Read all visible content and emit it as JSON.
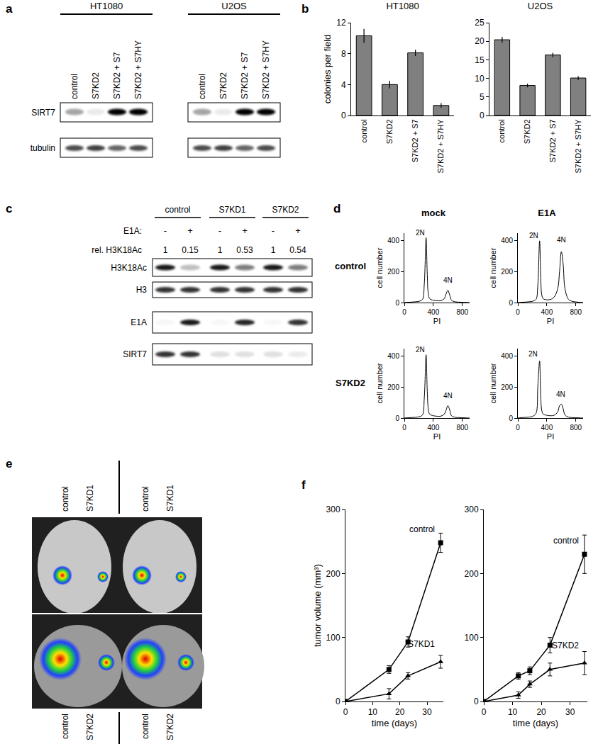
{
  "panel_labels": [
    "a",
    "b",
    "c",
    "d",
    "e",
    "f"
  ],
  "blot_a": {
    "groups": [
      "HT1080",
      "U2OS"
    ],
    "lanes": [
      "control",
      "S7KD2",
      "S7KD2 + S7",
      "S7KD2 + S7HY"
    ],
    "rows": [
      "SIRT7",
      "tubulin"
    ]
  },
  "blot_c": {
    "groups": [
      "control",
      "S7KD1",
      "S7KD2"
    ],
    "treatment_label": "E1A:",
    "treatment": [
      "-",
      "+",
      "-",
      "+",
      "-",
      "+"
    ],
    "quant_label": "rel. H3K18Ac",
    "quant": [
      1,
      0.15,
      1,
      0.53,
      1,
      0.54
    ],
    "rows": [
      "H3K18Ac",
      "H3",
      "E1A",
      "SIRT7"
    ]
  },
  "flow_d": {
    "columns": [
      "mock",
      "E1A"
    ],
    "rows": [
      "control",
      "S7KD2"
    ]
  },
  "mice_e": {
    "top_labels": [
      "control",
      "S7KD1",
      "control",
      "S7KD1"
    ],
    "bottom_labels": [
      "control",
      "S7KD2",
      "control",
      "S7KD2"
    ]
  },
  "chart_data": [
    {
      "type": "bar",
      "title": "HT1080",
      "categories": [
        "control",
        "S7KD2",
        "S7KD2 + S7",
        "S7KD2 + S7HY"
      ],
      "values": [
        10.3,
        4.0,
        8.1,
        1.3
      ],
      "errors": [
        0.9,
        0.5,
        0.4,
        0.3
      ],
      "ylim": [
        0,
        12
      ],
      "yticks": [
        0,
        4,
        8,
        12
      ],
      "ylabel": "colonies per field",
      "color": "#808080",
      "grid": false
    },
    {
      "type": "bar",
      "title": "U2OS",
      "categories": [
        "control",
        "S7KD2",
        "S7KD2 + S7",
        "S7KD2 + S7HY"
      ],
      "values": [
        20.4,
        8.1,
        16.3,
        10.1
      ],
      "errors": [
        0.8,
        0.5,
        0.6,
        0.5
      ],
      "ylim": [
        0,
        25
      ],
      "yticks": [
        0,
        5,
        10,
        15,
        20,
        25
      ],
      "color": "#808080",
      "grid": false
    },
    {
      "type": "line",
      "x": [
        0,
        50,
        100,
        150,
        200,
        250,
        275,
        300,
        315,
        330,
        350,
        400,
        450,
        500,
        550,
        575,
        600,
        625,
        650,
        700,
        750,
        800,
        850,
        900
      ],
      "values": [
        0,
        2,
        3,
        5,
        8,
        20,
        120,
        420,
        200,
        60,
        25,
        15,
        12,
        12,
        25,
        55,
        80,
        50,
        15,
        5,
        3,
        2,
        1,
        0
      ],
      "xlim": [
        0,
        900
      ],
      "xticks": [
        0,
        400,
        800
      ],
      "ylim": [
        0,
        450
      ],
      "yticks": [
        0,
        200,
        400
      ],
      "xlabel": "PI",
      "ylabel": "cell number",
      "color": "#000000",
      "grid": false,
      "annotations": [
        {
          "text": "2N",
          "x": 220,
          "y": 420
        },
        {
          "text": "4N",
          "x": 600,
          "y": 110
        }
      ]
    },
    {
      "type": "line",
      "x": [
        0,
        50,
        100,
        150,
        200,
        250,
        275,
        300,
        315,
        330,
        350,
        400,
        450,
        500,
        550,
        575,
        600,
        625,
        650,
        700,
        750,
        800,
        850,
        900
      ],
      "values": [
        0,
        2,
        3,
        5,
        8,
        20,
        110,
        400,
        180,
        50,
        25,
        18,
        20,
        35,
        90,
        200,
        330,
        250,
        90,
        20,
        8,
        4,
        2,
        0
      ],
      "xlim": [
        0,
        900
      ],
      "xticks": [
        0,
        400,
        800
      ],
      "ylim": [
        0,
        450
      ],
      "yticks": [
        0,
        200,
        400
      ],
      "xlabel": "PI",
      "ylabel": "cell number",
      "color": "#000000",
      "grid": false,
      "annotations": [
        {
          "text": "2N",
          "x": 220,
          "y": 400
        },
        {
          "text": "4N",
          "x": 600,
          "y": 370
        }
      ]
    },
    {
      "type": "line",
      "x": [
        0,
        50,
        100,
        150,
        200,
        250,
        275,
        300,
        315,
        330,
        350,
        400,
        450,
        500,
        550,
        575,
        600,
        625,
        650,
        700,
        750,
        800,
        850,
        900
      ],
      "values": [
        0,
        2,
        3,
        5,
        8,
        20,
        130,
        410,
        190,
        60,
        25,
        15,
        12,
        12,
        25,
        50,
        80,
        55,
        15,
        5,
        3,
        2,
        1,
        0
      ],
      "xlim": [
        0,
        900
      ],
      "xticks": [
        0,
        400,
        800
      ],
      "ylim": [
        0,
        450
      ],
      "yticks": [
        0,
        200,
        400
      ],
      "xlabel": "PI",
      "ylabel": "cell number",
      "color": "#000000",
      "grid": false,
      "annotations": [
        {
          "text": "2N",
          "x": 220,
          "y": 410
        },
        {
          "text": "4N",
          "x": 600,
          "y": 110
        }
      ]
    },
    {
      "type": "line",
      "x": [
        0,
        50,
        100,
        150,
        200,
        250,
        275,
        300,
        315,
        330,
        350,
        400,
        450,
        500,
        550,
        575,
        600,
        625,
        650,
        700,
        750,
        800,
        850,
        900
      ],
      "values": [
        0,
        3,
        4,
        6,
        10,
        30,
        200,
        370,
        150,
        50,
        25,
        18,
        15,
        18,
        40,
        80,
        90,
        60,
        20,
        6,
        3,
        2,
        1,
        0
      ],
      "xlim": [
        0,
        900
      ],
      "xticks": [
        0,
        400,
        800
      ],
      "ylim": [
        0,
        450
      ],
      "yticks": [
        0,
        200,
        400
      ],
      "xlabel": "PI",
      "ylabel": "cell number",
      "color": "#000000",
      "grid": false,
      "annotations": [
        {
          "text": "2N",
          "x": 210,
          "y": 380
        },
        {
          "text": "4N",
          "x": 590,
          "y": 120
        }
      ]
    },
    {
      "type": "line",
      "x": [
        0,
        16,
        23,
        35
      ],
      "xlim": [
        0,
        36
      ],
      "xticks": [
        0,
        10,
        20,
        30
      ],
      "ylim": [
        0,
        300
      ],
      "yticks": [
        0,
        100,
        200,
        300
      ],
      "xlabel": "time (days)",
      "ylabel": "tumor volume (mm³)",
      "grid": false,
      "series": [
        {
          "name": "control",
          "color": "#000000",
          "marker": "square",
          "values": [
            0,
            50,
            93,
            248
          ],
          "errors": [
            0,
            6,
            8,
            15
          ]
        },
        {
          "name": "S7KD1",
          "color": "#000000",
          "marker": "triangle",
          "values": [
            0,
            12,
            40,
            62
          ],
          "errors": [
            0,
            8,
            5,
            10
          ]
        }
      ]
    },
    {
      "type": "line",
      "x": [
        0,
        12,
        16,
        23,
        35
      ],
      "xlim": [
        0,
        36
      ],
      "xticks": [
        0,
        10,
        20,
        30
      ],
      "ylim": [
        0,
        300
      ],
      "yticks": [
        0,
        100,
        200,
        300
      ],
      "xlabel": "time (days)",
      "grid": false,
      "series": [
        {
          "name": "control",
          "color": "#000000",
          "marker": "square",
          "values": [
            0,
            40,
            48,
            88,
            230
          ],
          "errors": [
            0,
            5,
            6,
            12,
            30
          ]
        },
        {
          "name": "S7KD2",
          "color": "#000000",
          "marker": "triangle",
          "values": [
            0,
            10,
            27,
            50,
            60
          ],
          "errors": [
            0,
            5,
            5,
            10,
            18
          ]
        }
      ]
    }
  ]
}
